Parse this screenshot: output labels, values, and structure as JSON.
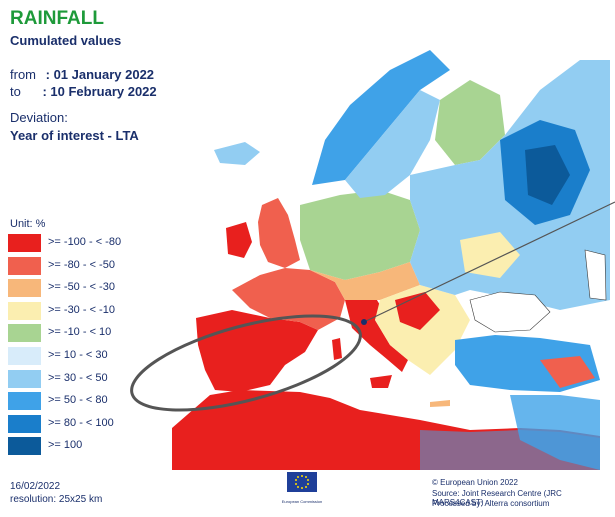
{
  "header": {
    "title": "RAINFALL",
    "subtitle": "Cumulated values",
    "from_label": "from",
    "from_value": ": 01 January 2022",
    "to_label": "to",
    "to_value": ": 10 February 2022",
    "deviation_label": "Deviation:",
    "deviation_value": "Year of interest - LTA"
  },
  "legend": {
    "unit": "Unit: %",
    "classes": [
      {
        "label": ">= -100 - < -80",
        "color": "#e8201e"
      },
      {
        "label": ">= -80 - < -50",
        "color": "#f0604e"
      },
      {
        "label": ">= -50 - < -30",
        "color": "#f7b77a"
      },
      {
        "label": ">= -30 - < -10",
        "color": "#fbeeb0"
      },
      {
        "label": ">= -10 - < 10",
        "color": "#a8d492"
      },
      {
        "label": ">= 10 - < 30",
        "color": "#d8ecfa"
      },
      {
        "label": ">= 30 - < 50",
        "color": "#92cdf2"
      },
      {
        "label": ">= 50 - < 80",
        "color": "#3fa2e8"
      },
      {
        "label": ">= 80 - < 100",
        "color": "#1a7ecb"
      },
      {
        "label": ">= 100",
        "color": "#0c5a9a"
      }
    ]
  },
  "footer": {
    "date": "16/02/2022",
    "resolution": "resolution: 25x25 km",
    "copyright": "© European Union 2022",
    "source": "Source: Joint Research Centre (JRC MARS4CAST)",
    "processed": "Processed by: Alterra consortium",
    "logo_text": "European Commission"
  },
  "map": {
    "sea_color": "#ffffff",
    "border_color": "#3a3a3a",
    "annotation_color": "#555555"
  }
}
